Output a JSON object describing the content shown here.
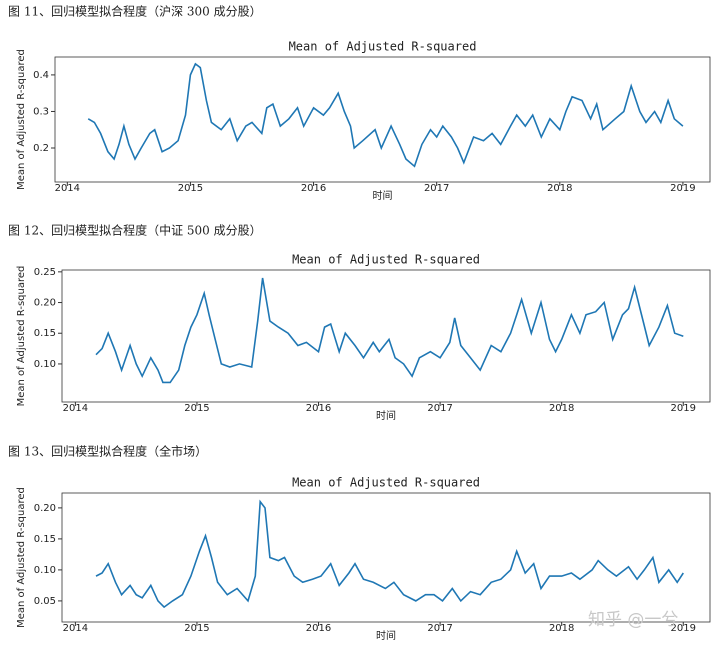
{
  "chart_data": [
    {
      "type": "line",
      "caption": "图 11、回归模型拟合程度（沪深 300 成分股）",
      "title": "Mean of Adjusted R-squared",
      "x_label": "时间",
      "y_label": "Mean of Adjusted R-squared",
      "color": "#1f77b4",
      "xlim": [
        2013.9,
        2019.22
      ],
      "xticks": [
        2014,
        2015,
        2016,
        2017,
        2018,
        2019
      ],
      "ylim": [
        0.107,
        0.449
      ],
      "yticks": [
        0.2,
        0.3,
        0.4
      ],
      "x": [
        2014.17,
        2014.22,
        2014.27,
        2014.33,
        2014.38,
        2014.42,
        2014.46,
        2014.5,
        2014.55,
        2014.6,
        2014.67,
        2014.71,
        2014.77,
        2014.83,
        2014.9,
        2014.96,
        2015.0,
        2015.04,
        2015.08,
        2015.13,
        2015.17,
        2015.25,
        2015.32,
        2015.38,
        2015.45,
        2015.5,
        2015.58,
        2015.62,
        2015.67,
        2015.73,
        2015.8,
        2015.87,
        2015.92,
        2016.0,
        2016.08,
        2016.13,
        2016.2,
        2016.25,
        2016.3,
        2016.33,
        2016.4,
        2016.5,
        2016.55,
        2016.63,
        2016.7,
        2016.75,
        2016.82,
        2016.88,
        2016.95,
        2017.0,
        2017.05,
        2017.12,
        2017.17,
        2017.22,
        2017.3,
        2017.38,
        2017.45,
        2017.52,
        2017.6,
        2017.65,
        2017.72,
        2017.78,
        2017.85,
        2017.92,
        2018.0,
        2018.05,
        2018.1,
        2018.18,
        2018.25,
        2018.3,
        2018.35,
        2018.45,
        2018.52,
        2018.58,
        2018.65,
        2018.7,
        2018.77,
        2018.82,
        2018.88,
        2018.93,
        2019.0
      ],
      "values": [
        0.28,
        0.27,
        0.24,
        0.19,
        0.17,
        0.21,
        0.26,
        0.21,
        0.17,
        0.2,
        0.24,
        0.25,
        0.19,
        0.2,
        0.22,
        0.29,
        0.4,
        0.43,
        0.42,
        0.33,
        0.27,
        0.25,
        0.28,
        0.22,
        0.26,
        0.27,
        0.24,
        0.31,
        0.32,
        0.26,
        0.28,
        0.31,
        0.26,
        0.31,
        0.29,
        0.31,
        0.35,
        0.3,
        0.26,
        0.2,
        0.22,
        0.25,
        0.2,
        0.26,
        0.21,
        0.17,
        0.15,
        0.21,
        0.25,
        0.23,
        0.26,
        0.23,
        0.2,
        0.16,
        0.23,
        0.22,
        0.24,
        0.21,
        0.26,
        0.29,
        0.26,
        0.29,
        0.23,
        0.28,
        0.25,
        0.3,
        0.34,
        0.33,
        0.28,
        0.32,
        0.25,
        0.28,
        0.3,
        0.37,
        0.3,
        0.27,
        0.3,
        0.27,
        0.33,
        0.28,
        0.26
      ]
    },
    {
      "type": "line",
      "caption": "图 12、回归模型拟合程度（中证 500 成分股）",
      "title": "Mean of Adjusted R-squared",
      "x_label": "时间",
      "y_label": "Mean of Adjusted R-squared",
      "color": "#1f77b4",
      "xlim": [
        2013.89,
        2019.22
      ],
      "xticks": [
        2014,
        2015,
        2016,
        2017,
        2018,
        2019
      ],
      "ylim": [
        0.038,
        0.253
      ],
      "yticks": [
        {
          "value": 0.1,
          "label": "0.10"
        },
        0.15,
        {
          "value": 0.2,
          "label": "0.20"
        },
        0.25
      ],
      "x": [
        2014.17,
        2014.22,
        2014.27,
        2014.33,
        2014.38,
        2014.45,
        2014.5,
        2014.55,
        2014.62,
        2014.68,
        2014.72,
        2014.78,
        2014.85,
        2014.9,
        2014.95,
        2015.0,
        2015.06,
        2015.1,
        2015.15,
        2015.2,
        2015.27,
        2015.35,
        2015.45,
        2015.5,
        2015.54,
        2015.6,
        2015.67,
        2015.75,
        2015.83,
        2015.9,
        2016.0,
        2016.05,
        2016.1,
        2016.17,
        2016.22,
        2016.3,
        2016.37,
        2016.45,
        2016.5,
        2016.58,
        2016.63,
        2016.7,
        2016.77,
        2016.83,
        2016.92,
        2017.0,
        2017.08,
        2017.12,
        2017.17,
        2017.25,
        2017.33,
        2017.42,
        2017.5,
        2017.58,
        2017.63,
        2017.67,
        2017.75,
        2017.83,
        2017.9,
        2017.95,
        2018.0,
        2018.08,
        2018.15,
        2018.2,
        2018.28,
        2018.35,
        2018.42,
        2018.5,
        2018.55,
        2018.6,
        2018.67,
        2018.72,
        2018.8,
        2018.87,
        2018.93,
        2019.0
      ],
      "values": [
        0.115,
        0.125,
        0.15,
        0.12,
        0.09,
        0.13,
        0.1,
        0.08,
        0.11,
        0.09,
        0.07,
        0.07,
        0.09,
        0.13,
        0.16,
        0.18,
        0.215,
        0.18,
        0.14,
        0.1,
        0.095,
        0.1,
        0.095,
        0.17,
        0.24,
        0.17,
        0.16,
        0.15,
        0.13,
        0.135,
        0.12,
        0.16,
        0.165,
        0.12,
        0.15,
        0.13,
        0.11,
        0.135,
        0.12,
        0.14,
        0.11,
        0.1,
        0.08,
        0.11,
        0.12,
        0.11,
        0.135,
        0.175,
        0.13,
        0.11,
        0.09,
        0.13,
        0.12,
        0.15,
        0.18,
        0.205,
        0.15,
        0.2,
        0.14,
        0.12,
        0.14,
        0.18,
        0.15,
        0.18,
        0.185,
        0.2,
        0.14,
        0.18,
        0.19,
        0.225,
        0.17,
        0.13,
        0.16,
        0.195,
        0.15,
        0.145
      ]
    },
    {
      "type": "line",
      "caption": "图 13、回归模型拟合程度（全市场）",
      "title": "Mean of Adjusted R-squared",
      "x_label": "时间",
      "y_label": "Mean of Adjusted R-squared",
      "color": "#1f77b4",
      "xlim": [
        2013.89,
        2019.22
      ],
      "xticks": [
        2014,
        2015,
        2016,
        2017,
        2018,
        2019
      ],
      "ylim": [
        0.016,
        0.224
      ],
      "yticks": [
        0.05,
        {
          "value": 0.1,
          "label": "0.10"
        },
        0.15,
        {
          "value": 0.2,
          "label": "0.20"
        }
      ],
      "x": [
        2014.17,
        2014.22,
        2014.27,
        2014.33,
        2014.38,
        2014.45,
        2014.5,
        2014.55,
        2014.62,
        2014.68,
        2014.73,
        2014.8,
        2014.88,
        2014.95,
        2015.02,
        2015.07,
        2015.12,
        2015.17,
        2015.25,
        2015.33,
        2015.42,
        2015.48,
        2015.52,
        2015.56,
        2015.6,
        2015.67,
        2015.72,
        2015.8,
        2015.87,
        2015.95,
        2016.02,
        2016.1,
        2016.17,
        2016.25,
        2016.3,
        2016.37,
        2016.45,
        2016.55,
        2016.62,
        2016.7,
        2016.8,
        2016.88,
        2016.95,
        2017.02,
        2017.1,
        2017.17,
        2017.25,
        2017.33,
        2017.42,
        2017.5,
        2017.58,
        2017.63,
        2017.7,
        2017.77,
        2017.83,
        2017.9,
        2018.0,
        2018.08,
        2018.15,
        2018.25,
        2018.3,
        2018.38,
        2018.45,
        2018.55,
        2018.62,
        2018.68,
        2018.75,
        2018.8,
        2018.88,
        2018.95,
        2019.0
      ],
      "values": [
        0.09,
        0.095,
        0.11,
        0.08,
        0.06,
        0.075,
        0.06,
        0.055,
        0.075,
        0.05,
        0.04,
        0.05,
        0.06,
        0.09,
        0.13,
        0.155,
        0.12,
        0.08,
        0.06,
        0.07,
        0.05,
        0.09,
        0.21,
        0.2,
        0.12,
        0.115,
        0.12,
        0.09,
        0.08,
        0.085,
        0.09,
        0.11,
        0.075,
        0.095,
        0.11,
        0.085,
        0.08,
        0.07,
        0.08,
        0.06,
        0.05,
        0.06,
        0.06,
        0.05,
        0.07,
        0.05,
        0.065,
        0.06,
        0.08,
        0.085,
        0.1,
        0.13,
        0.095,
        0.11,
        0.07,
        0.09,
        0.09,
        0.095,
        0.085,
        0.1,
        0.115,
        0.1,
        0.09,
        0.105,
        0.085,
        0.1,
        0.12,
        0.08,
        0.1,
        0.08,
        0.095
      ]
    }
  ],
  "watermark": "知乎 @一兮"
}
